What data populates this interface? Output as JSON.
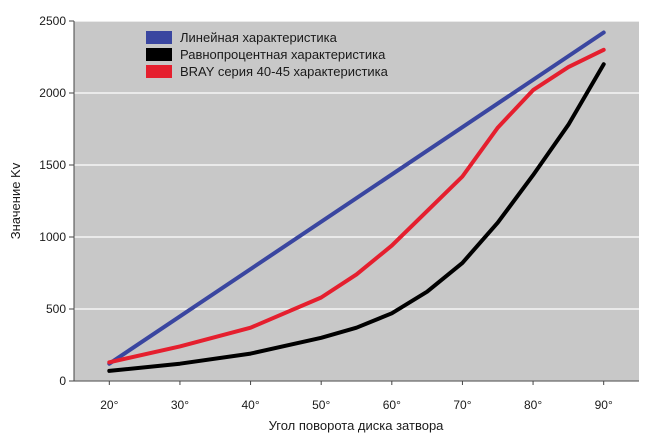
{
  "chart_data": {
    "type": "line",
    "xlabel": "Угол поворота диска затвора",
    "ylabel": "Значение Kv",
    "categories": [
      "20°",
      "30°",
      "40°",
      "50°",
      "60°",
      "70°",
      "80°",
      "90°"
    ],
    "x": [
      20,
      30,
      40,
      50,
      60,
      70,
      80,
      90
    ],
    "xlim": [
      15,
      95
    ],
    "ylim": [
      0,
      2500
    ],
    "yticks": [
      0,
      500,
      1000,
      1500,
      2000,
      2500
    ],
    "grid": "horizontal",
    "legend_position": "top-left",
    "series": [
      {
        "name": "Линейная характеристика",
        "color": "#3a46a0",
        "x": [
          20,
          90
        ],
        "values": [
          120,
          2420
        ]
      },
      {
        "name": "Равнопроцентная характеристика",
        "color": "#000000",
        "x": [
          20,
          30,
          40,
          50,
          55,
          60,
          65,
          70,
          75,
          80,
          85,
          90
        ],
        "values": [
          70,
          120,
          190,
          300,
          370,
          470,
          620,
          820,
          1100,
          1430,
          1780,
          2200
        ]
      },
      {
        "name": "BRAY серия 40-45 характеристика",
        "color": "#e51f2e",
        "x": [
          20,
          30,
          40,
          50,
          55,
          60,
          65,
          70,
          75,
          80,
          85,
          90
        ],
        "values": [
          130,
          240,
          370,
          580,
          740,
          940,
          1180,
          1420,
          1760,
          2020,
          2180,
          2300
        ]
      }
    ]
  }
}
